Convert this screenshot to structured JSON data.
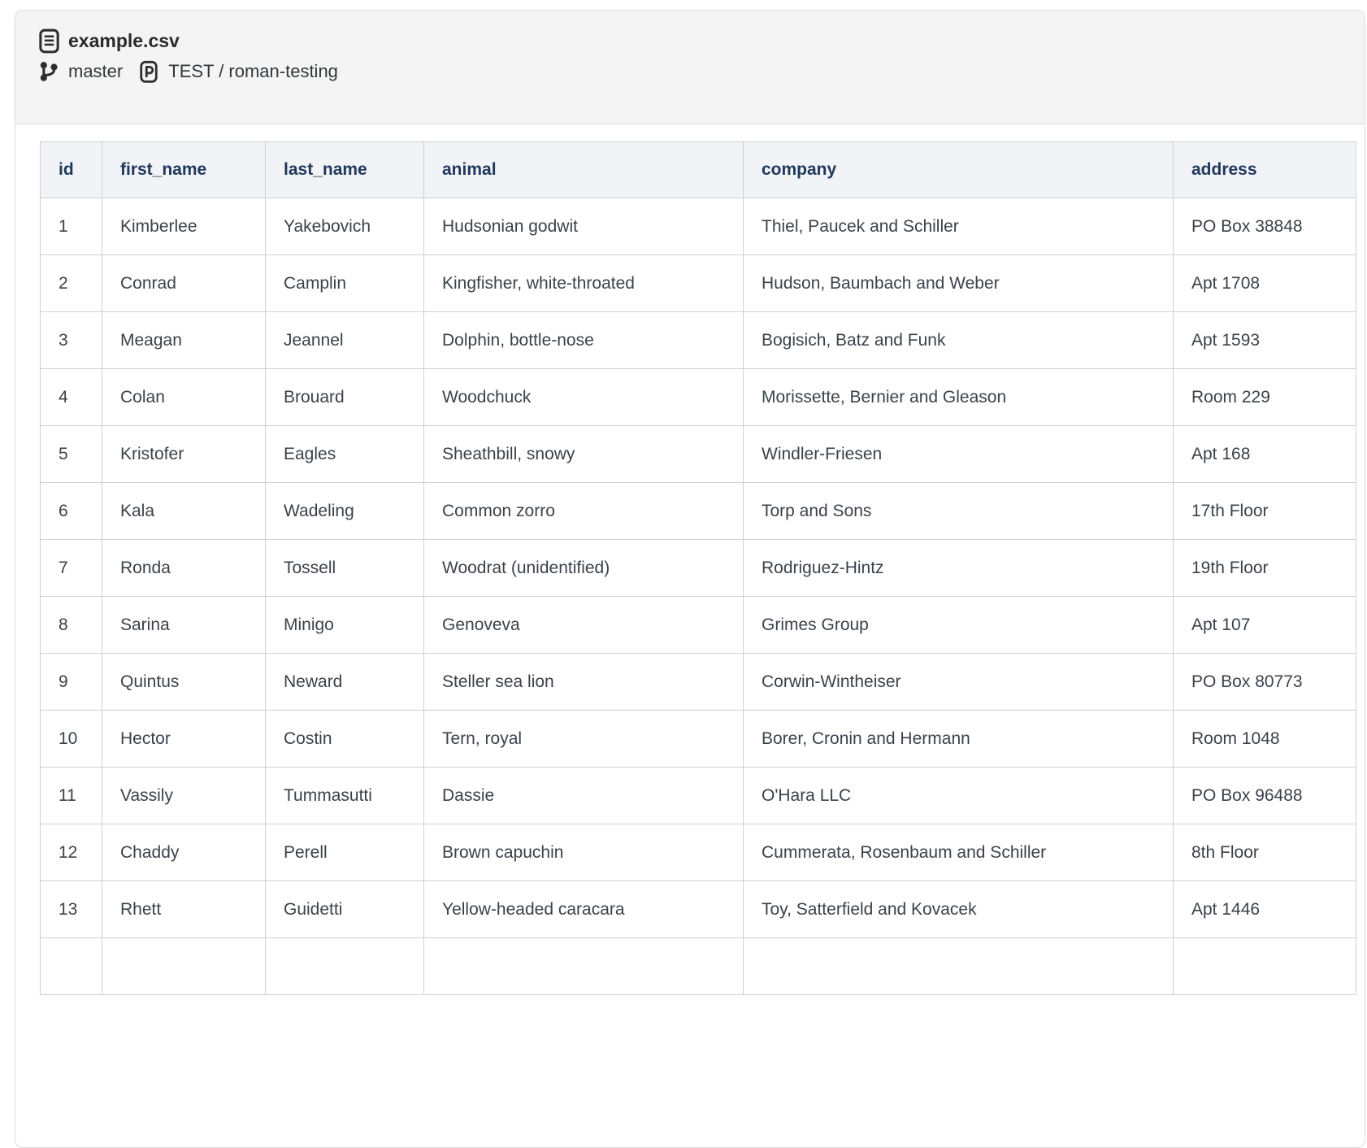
{
  "header": {
    "file_name": "example.csv",
    "branch": "master",
    "project": "TEST / roman-testing",
    "icons": {
      "file": "file-document-icon",
      "branch": "git-branch-icon",
      "project": "project-icon"
    }
  },
  "colors": {
    "container_border": "#dcdcde",
    "header_box_bg": "#f4f4f4",
    "table_header_bg": "#f1f3f6",
    "table_border": "#ccd0d7",
    "table_header_text": "#20395c",
    "table_body_text": "#3a424a"
  },
  "table": {
    "columns": [
      "id",
      "first_name",
      "last_name",
      "animal",
      "company",
      "address"
    ],
    "rows": [
      [
        "1",
        "Kimberlee",
        "Yakebovich",
        "Hudsonian godwit",
        "Thiel, Paucek and Schiller",
        "PO Box 38848"
      ],
      [
        "2",
        "Conrad",
        "Camplin",
        "Kingfisher, white-throated",
        "Hudson, Baumbach and Weber",
        "Apt 1708"
      ],
      [
        "3",
        "Meagan",
        "Jeannel",
        "Dolphin, bottle-nose",
        "Bogisich, Batz and Funk",
        "Apt 1593"
      ],
      [
        "4",
        "Colan",
        "Brouard",
        "Woodchuck",
        "Morissette, Bernier and Gleason",
        "Room 229"
      ],
      [
        "5",
        "Kristofer",
        "Eagles",
        "Sheathbill, snowy",
        "Windler-Friesen",
        "Apt 168"
      ],
      [
        "6",
        "Kala",
        "Wadeling",
        "Common zorro",
        "Torp and Sons",
        "17th Floor"
      ],
      [
        "7",
        "Ronda",
        "Tossell",
        "Woodrat (unidentified)",
        "Rodriguez-Hintz",
        "19th Floor"
      ],
      [
        "8",
        "Sarina",
        "Minigo",
        "Genoveva",
        "Grimes Group",
        "Apt 107"
      ],
      [
        "9",
        "Quintus",
        "Neward",
        "Steller sea lion",
        "Corwin-Wintheiser",
        "PO Box 80773"
      ],
      [
        "10",
        "Hector",
        "Costin",
        "Tern, royal",
        "Borer, Cronin and Hermann",
        "Room 1048"
      ],
      [
        "11",
        "Vassily",
        "Tummasutti",
        "Dassie",
        "O'Hara LLC",
        "PO Box 96488"
      ],
      [
        "12",
        "Chaddy",
        "Perell",
        "Brown capuchin",
        "Cummerata, Rosenbaum and Schiller",
        "8th Floor"
      ],
      [
        "13",
        "Rhett",
        "Guidetti",
        "Yellow-headed caracara",
        "Toy, Satterfield and Kovacek",
        "Apt 1446"
      ]
    ],
    "partial_row": [
      "",
      "",
      "",
      "",
      "",
      ""
    ]
  }
}
